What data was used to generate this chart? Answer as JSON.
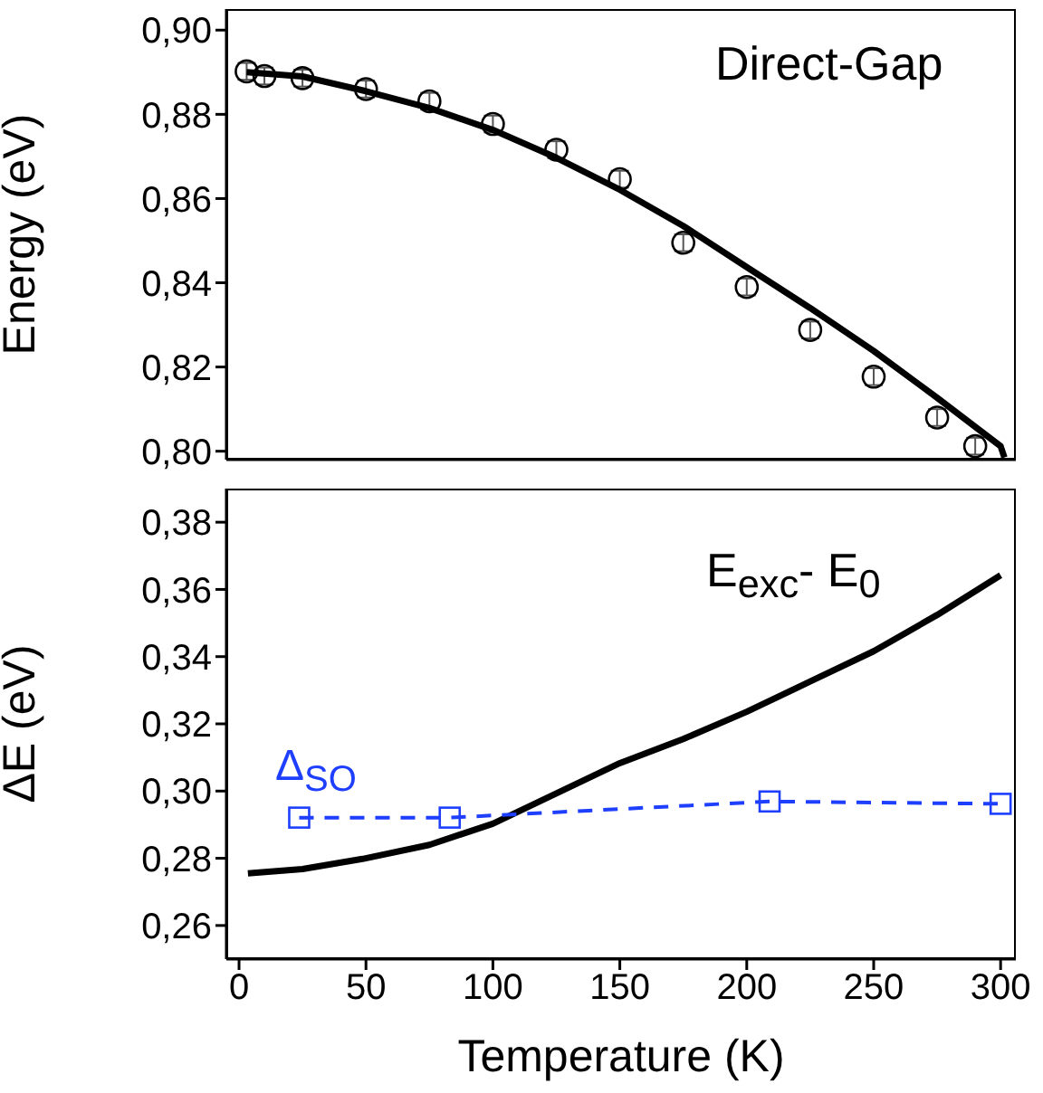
{
  "chart_data": [
    {
      "type": "scatter",
      "ylabel": "Energy (eV)",
      "annotations": [
        "Direct-Gap"
      ],
      "xlim": [
        -5,
        306
      ],
      "xticks": [
        0,
        50,
        100,
        150,
        200,
        250,
        300
      ],
      "ylim": [
        0.798,
        0.905
      ],
      "yticks": [
        {
          "value": 0.8,
          "label": "0,80"
        },
        {
          "value": 0.82,
          "label": "0,82"
        },
        {
          "value": 0.84,
          "label": "0,84"
        },
        {
          "value": 0.86,
          "label": "0,86"
        },
        {
          "value": 0.88,
          "label": "0,88"
        },
        {
          "value": 0.9,
          "label": "0,90"
        }
      ],
      "tick_labels": "y",
      "series": [
        {
          "color": "#000000",
          "marker": "circle",
          "x": [
            3,
            10,
            25,
            50,
            75,
            100,
            125,
            150,
            175,
            200,
            225,
            250,
            275,
            290
          ],
          "values": [
            0.8902,
            0.8891,
            0.8886,
            0.886,
            0.8831,
            0.8777,
            0.8716,
            0.8646,
            0.8495,
            0.839,
            0.8288,
            0.8177,
            0.808,
            0.8012
          ],
          "errors": [
            0.002,
            0.002,
            0.002,
            0.002,
            0.002,
            0.002,
            0.002,
            0.002,
            0.002,
            0.002,
            0.002,
            0.002,
            0.002,
            0.002
          ]
        },
        {
          "type": "line",
          "color": "#000000",
          "marker": "none",
          "line_style": "solid",
          "x": [
            3,
            25,
            50,
            75,
            100,
            125,
            150,
            175,
            200,
            225,
            250,
            275,
            300,
            301.5
          ],
          "values": [
            0.89,
            0.889,
            0.8855,
            0.8815,
            0.8763,
            0.8697,
            0.8621,
            0.8535,
            0.8437,
            0.834,
            0.8238,
            0.8127,
            0.8012,
            0.7985
          ]
        }
      ]
    },
    {
      "type": "line",
      "xlabel": "Temperature (K)",
      "ylabel": "ΔE (eV)",
      "xlim": [
        -5,
        306
      ],
      "xticks": [
        0,
        50,
        100,
        150,
        200,
        250,
        300
      ],
      "ylim": [
        0.25,
        0.39
      ],
      "yticks": [
        {
          "value": 0.26,
          "label": "0,26"
        },
        {
          "value": 0.28,
          "label": "0,28"
        },
        {
          "value": 0.3,
          "label": "0,30"
        },
        {
          "value": 0.32,
          "label": "0,32"
        },
        {
          "value": 0.34,
          "label": "0,34"
        },
        {
          "value": 0.36,
          "label": "0,36"
        },
        {
          "value": 0.38,
          "label": "0,38"
        }
      ],
      "series": [
        {
          "name": "E$_{exc}$- E$_{0}$",
          "color": "#000000",
          "marker": "none",
          "line_style": "solid",
          "x": [
            3.5,
            25,
            48.6,
            75,
            100,
            125,
            150,
            175,
            200,
            225,
            250,
            275,
            300
          ],
          "values": [
            0.2755,
            0.2768,
            0.2798,
            0.284,
            0.2903,
            0.2993,
            0.3083,
            0.3155,
            0.3236,
            0.3326,
            0.3416,
            0.3524,
            0.3642
          ]
        },
        {
          "name": "Δ$_{SO}$",
          "color": "#1f3fff",
          "marker": "square",
          "line_style": "dashed",
          "x": [
            23.7,
            83,
            209,
            300
          ],
          "values": [
            0.2921,
            0.2921,
            0.2969,
            0.2962
          ]
        }
      ]
    }
  ]
}
